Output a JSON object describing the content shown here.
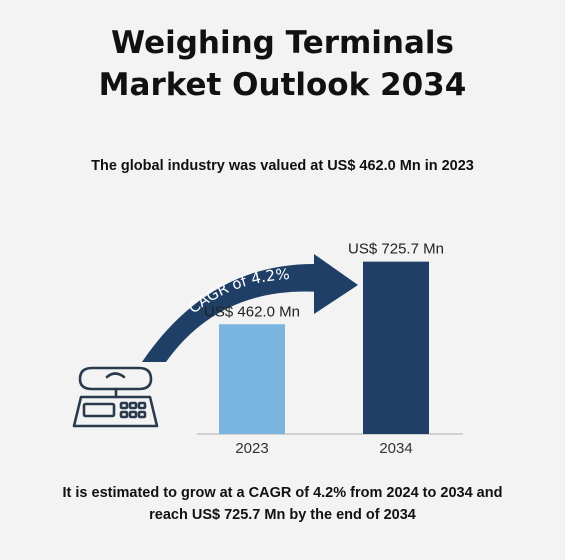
{
  "header": {
    "title_line1": "Weighing Terminals",
    "title_line2": "Market Outlook 2034",
    "subtitle": "The global industry was valued at US$ 462.0 Mn in 2023"
  },
  "footer": {
    "line1": "It is estimated to grow at a CAGR of 4.2% from 2024 to 2034 and",
    "line2": "reach US$ 725.7 Mn by the end of 2034"
  },
  "icon": "weighing-scale-icon",
  "colors": {
    "bar_2023": "#7ab6e0",
    "bar_2034": "#1f3f66",
    "arrow": "#1f3f66"
  },
  "chart_data": {
    "type": "bar",
    "categories": [
      "2023",
      "2034"
    ],
    "values": [
      462.0,
      725.7
    ],
    "value_labels": [
      "US$ 462.0 Mn",
      "US$ 725.7 Mn"
    ],
    "annotation": "CAGR of 4.2%",
    "ylim": [
      0,
      800
    ],
    "grid": false,
    "legend": "none"
  }
}
